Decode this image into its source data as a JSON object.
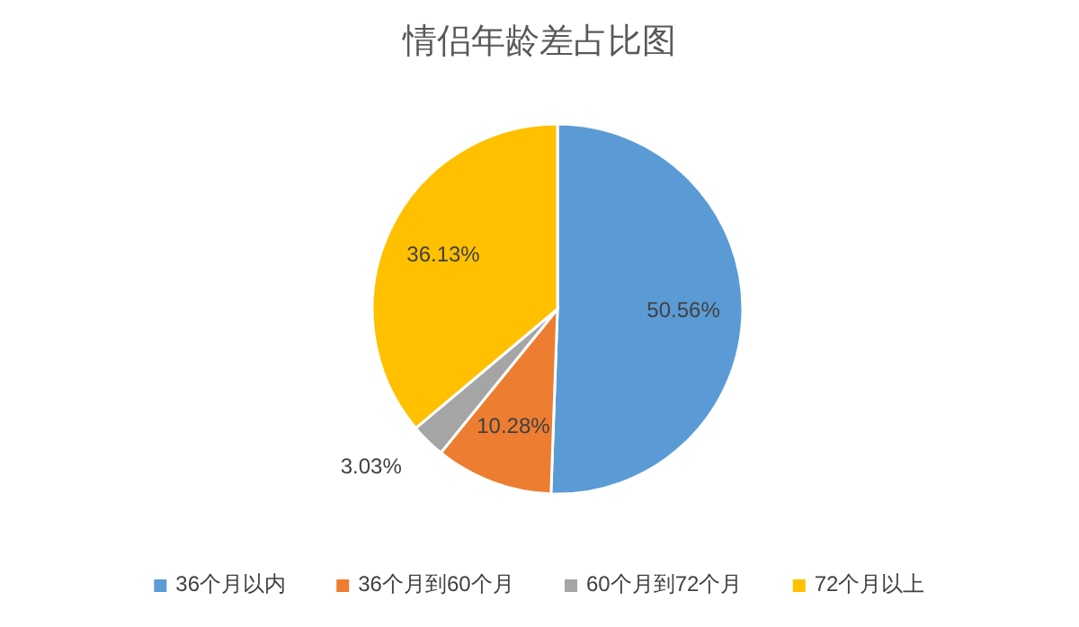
{
  "chart_data": {
    "type": "pie",
    "title": "情侣年龄差占比图",
    "categories": [
      "36个月以内",
      "36个月到60个月",
      "60个月到72个月",
      "72个月以上"
    ],
    "values": [
      50.56,
      10.28,
      3.03,
      36.13
    ],
    "colors": [
      "#5b9bd5",
      "#ed7d31",
      "#a5a5a5",
      "#ffc000"
    ],
    "value_labels": [
      "50.56%",
      "10.28%",
      "3.03%",
      "36.13%"
    ],
    "legend": "bottom"
  }
}
